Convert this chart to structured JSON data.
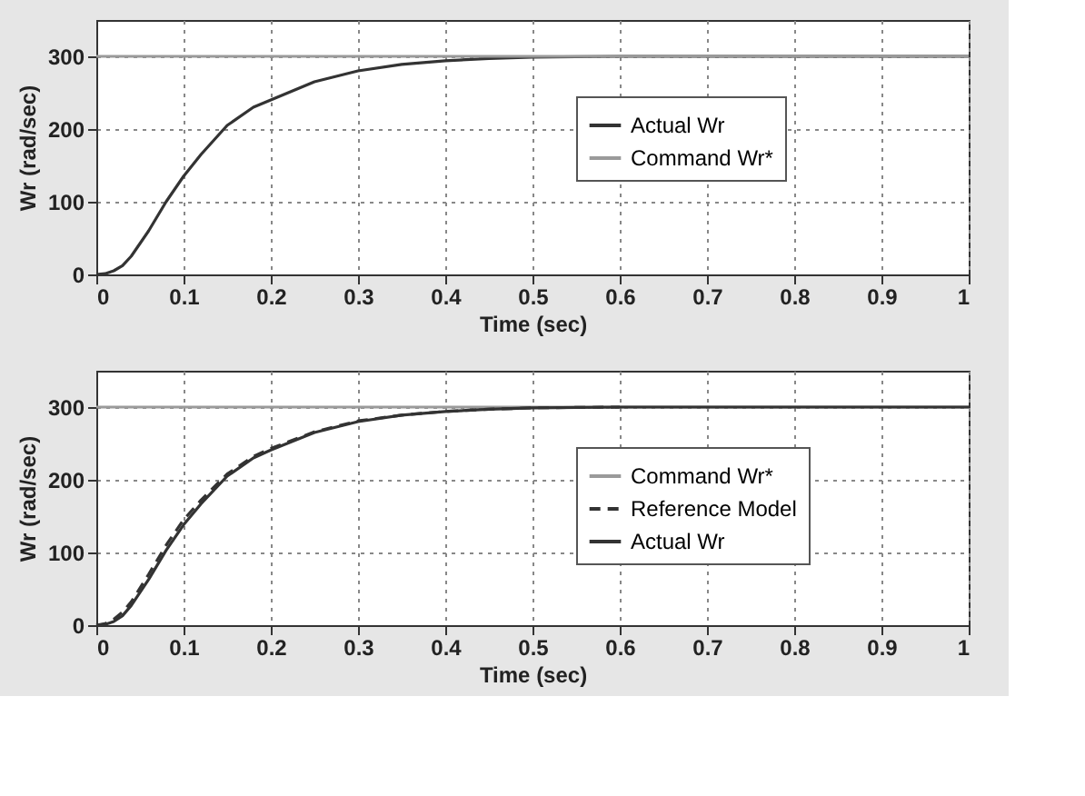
{
  "chart_data": [
    {
      "type": "line",
      "xlabel": "Time (sec)",
      "ylabel": "Wr (rad/sec)",
      "xlim": [
        0,
        1
      ],
      "xticks": [
        0,
        0.1,
        0.2,
        0.3,
        0.4,
        0.5,
        0.6,
        0.7,
        0.8,
        0.9,
        1
      ],
      "ylim": [
        0,
        350
      ],
      "yticks": [
        0,
        100,
        200,
        300
      ],
      "grid": true,
      "legend": "right",
      "series": [
        {
          "name": "Actual Wr",
          "color": "#333333",
          "line_style": "solid",
          "x": [
            0,
            0.01,
            0.02,
            0.03,
            0.04,
            0.06,
            0.08,
            0.1,
            0.12,
            0.15,
            0.18,
            0.2,
            0.25,
            0.3,
            0.35,
            0.4,
            0.45,
            0.5,
            0.6,
            0.8,
            1
          ],
          "values": [
            0,
            1,
            5,
            12,
            25,
            60,
            100,
            135,
            165,
            205,
            230,
            240,
            265,
            280,
            289,
            294,
            297,
            299,
            300,
            300,
            300
          ]
        },
        {
          "name": "Command Wr*",
          "color": "#9a9a9a",
          "line_style": "solid",
          "x": [
            0,
            1
          ],
          "values": [
            300,
            300
          ]
        }
      ]
    },
    {
      "type": "line",
      "xlabel": "Time (sec)",
      "ylabel": "Wr (rad/sec)",
      "xlim": [
        0,
        1
      ],
      "xticks": [
        0,
        0.1,
        0.2,
        0.3,
        0.4,
        0.5,
        0.6,
        0.7,
        0.8,
        0.9,
        1
      ],
      "ylim": [
        0,
        350
      ],
      "yticks": [
        0,
        100,
        200,
        300
      ],
      "grid": true,
      "legend": "right",
      "series": [
        {
          "name": "Command Wr*",
          "color": "#9a9a9a",
          "line_style": "solid",
          "x": [
            0,
            1
          ],
          "values": [
            300,
            300
          ]
        },
        {
          "name": "Reference Model",
          "color": "#333333",
          "line_style": "dashed",
          "x": [
            0,
            0.01,
            0.02,
            0.03,
            0.04,
            0.06,
            0.08,
            0.1,
            0.12,
            0.15,
            0.18,
            0.2,
            0.25,
            0.3,
            0.35,
            0.4,
            0.45,
            0.5,
            0.6
          ],
          "values": [
            0,
            2,
            8,
            18,
            32,
            70,
            110,
            145,
            172,
            208,
            232,
            243,
            266,
            281,
            289,
            294,
            297,
            299,
            300
          ]
        },
        {
          "name": "Actual Wr",
          "color": "#333333",
          "line_style": "solid",
          "x": [
            0,
            0.01,
            0.02,
            0.03,
            0.04,
            0.06,
            0.08,
            0.1,
            0.12,
            0.15,
            0.18,
            0.2,
            0.25,
            0.3,
            0.35,
            0.4,
            0.45,
            0.5,
            0.6,
            0.8,
            1
          ],
          "values": [
            0,
            1,
            5,
            13,
            27,
            63,
            103,
            138,
            167,
            205,
            230,
            241,
            265,
            280,
            289,
            294,
            297,
            299,
            300,
            300,
            300
          ]
        }
      ]
    }
  ]
}
